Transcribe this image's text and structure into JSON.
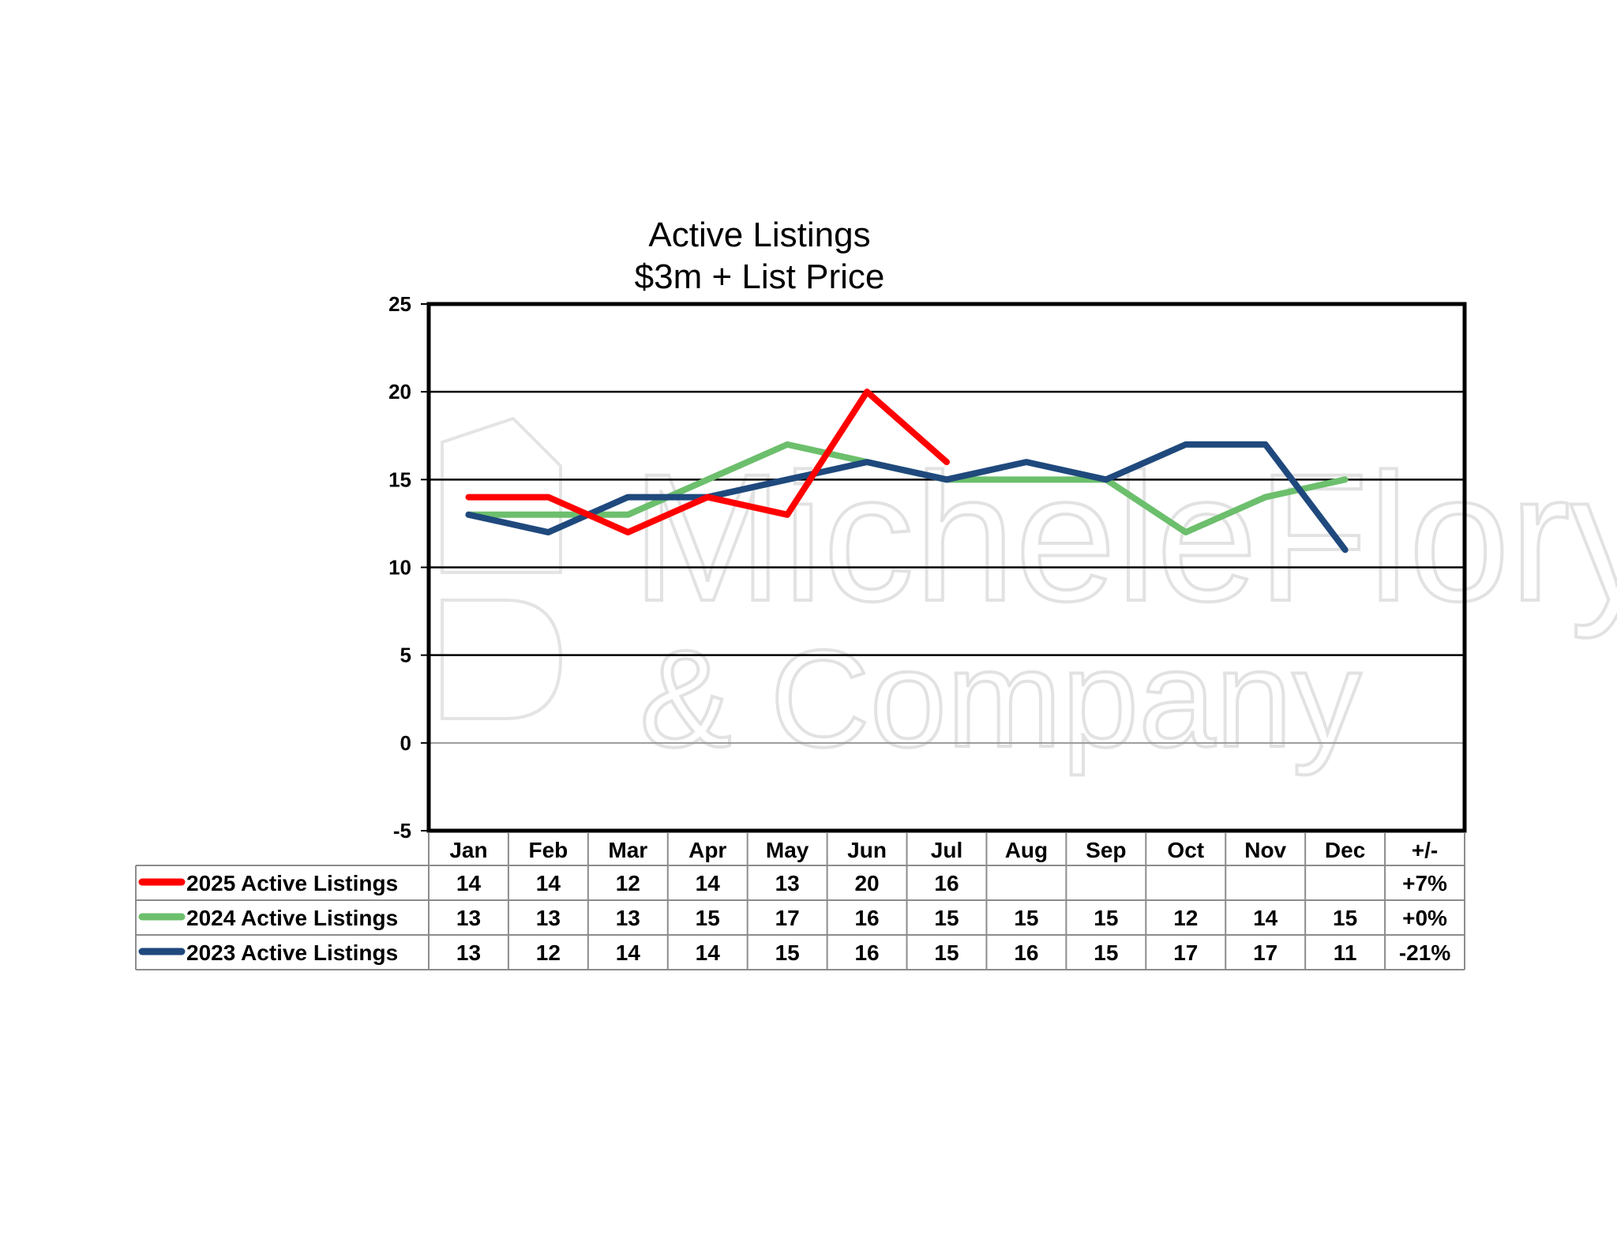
{
  "chart_data": {
    "type": "line",
    "title_line1": "Active Listings",
    "title_line2": "$3m + List Price",
    "ylim": [
      -5,
      25
    ],
    "yticks": [
      -5,
      0,
      5,
      10,
      15,
      20,
      25
    ],
    "grid": true,
    "categories": [
      "Jan",
      "Feb",
      "Mar",
      "Apr",
      "May",
      "Jun",
      "Jul",
      "Aug",
      "Sep",
      "Oct",
      "Nov",
      "Dec"
    ],
    "change_header": "+/-",
    "series": [
      {
        "name": "2025 Active Listings",
        "color": "#ff0000",
        "values": [
          14,
          14,
          12,
          14,
          13,
          20,
          16,
          null,
          null,
          null,
          null,
          null
        ],
        "change": "+7%"
      },
      {
        "name": "2024 Active Listings",
        "color": "#6cbf6c",
        "values": [
          13,
          13,
          13,
          15,
          17,
          16,
          15,
          15,
          15,
          12,
          14,
          15
        ],
        "change": "+0%"
      },
      {
        "name": "2023 Active Listings",
        "color": "#1f497d",
        "values": [
          13,
          12,
          14,
          14,
          15,
          16,
          15,
          16,
          15,
          17,
          17,
          11
        ],
        "change": "-21%"
      }
    ]
  },
  "watermark": {
    "line1": "MicheleFlory",
    "line2": "& Company"
  }
}
